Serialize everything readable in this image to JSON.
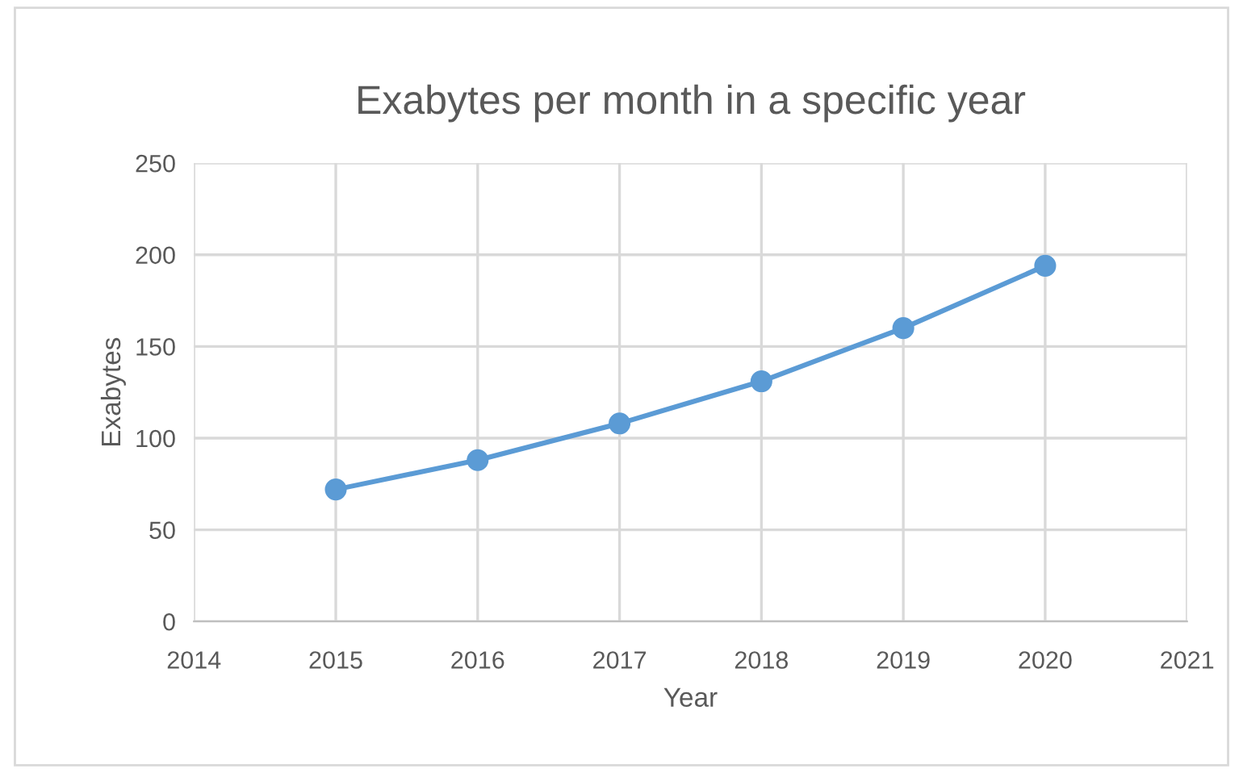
{
  "chart_data": {
    "type": "line",
    "title": "Exabytes per month in a specific year",
    "xlabel": "Year",
    "ylabel": "Exabytes",
    "x": [
      2015,
      2016,
      2017,
      2018,
      2019,
      2020
    ],
    "series": [
      {
        "color": "#5b9bd5",
        "values": [
          72,
          88,
          108,
          131,
          160,
          194
        ]
      }
    ],
    "xlim": [
      2014,
      2021
    ],
    "xticks": [
      2014,
      2015,
      2016,
      2017,
      2018,
      2019,
      2020,
      2021
    ],
    "ylim": [
      0,
      250
    ],
    "yticks": [
      0,
      50,
      100,
      150,
      200,
      250
    ],
    "grid": true,
    "marker": "circle",
    "line_style": "solid"
  }
}
